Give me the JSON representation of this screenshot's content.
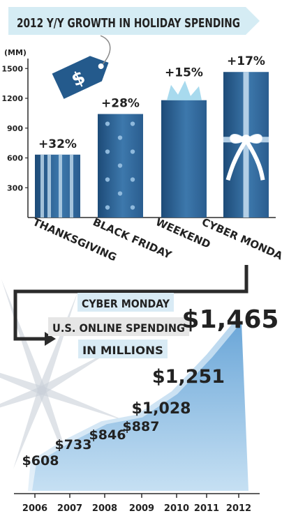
{
  "title": "2012 Y/Y GROWTH IN HOLIDAY SPENDING",
  "colors": {
    "bar_dark": "#1f4f7e",
    "bar_mid": "#3d77aa",
    "bar_light": "#6ea4cf",
    "title_band": "#d5ecf4",
    "ribbon": "#e8f2f8",
    "tag": "#245a8c",
    "area": "#7fb2dd",
    "area_light": "#c9e1f1",
    "label_band": "#d9ebf5",
    "axis": "#2b2b2b",
    "text": "#222222"
  },
  "icons": {
    "price_tag": "dollar-price-tag-icon",
    "arrow": "connector-arrow-icon",
    "bow": "gift-bow-icon",
    "tissue": "gift-tissue-icon"
  },
  "chart_data": [
    {
      "type": "bar",
      "ylabel": "(MM)",
      "yticks": [
        300,
        600,
        900,
        1200,
        1500
      ],
      "ylim": [
        0,
        1600
      ],
      "categories": [
        "THANKSGIVING",
        "BLACK FRIDAY",
        "WEEKEND",
        "CYBER MONDAY"
      ],
      "values": [
        633,
        1042,
        1181,
        1465
      ],
      "growth_labels": [
        "+32%",
        "+28%",
        "+15%",
        "+17%"
      ]
    },
    {
      "type": "area",
      "title_lines": [
        "CYBER MONDAY",
        "U.S. ONLINE SPENDING",
        "IN MILLIONS"
      ],
      "x": [
        "2006",
        "2007",
        "2008",
        "2009",
        "2010",
        "2011",
        "2012"
      ],
      "values": [
        608,
        733,
        846,
        887,
        1028,
        1251,
        1465
      ],
      "value_labels": [
        "$608",
        "$733",
        "$846",
        "$887",
        "$1,028",
        "$1,251",
        "$1,465"
      ]
    }
  ]
}
